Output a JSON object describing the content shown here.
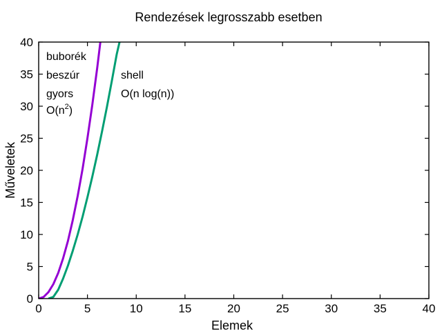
{
  "chart_data": {
    "type": "line",
    "title": "Rendezések legrosszabb esetben",
    "xlabel": "Elemek",
    "ylabel": "Műveletek",
    "xlim": [
      0,
      40
    ],
    "ylim": [
      0,
      40
    ],
    "xticks": [
      "0",
      "5",
      "10",
      "15",
      "20",
      "25",
      "30",
      "35",
      "40"
    ],
    "yticks": [
      "0",
      "5",
      "10",
      "15",
      "20",
      "25",
      "30",
      "35",
      "40"
    ],
    "grid": false,
    "legend": "none",
    "series": [
      {
        "color": "#9400d3",
        "x": [
          0,
          0.5,
          1,
          1.5,
          2,
          2.5,
          3,
          3.5,
          4,
          4.5,
          5,
          5.5,
          6,
          6.32
        ],
        "y": [
          0,
          0.25,
          1,
          2.25,
          4,
          6.25,
          9,
          12.25,
          16,
          20.25,
          25,
          30.25,
          36,
          40
        ]
      },
      {
        "color": "#009e73",
        "x": [
          1,
          1.5,
          2,
          2.5,
          3,
          3.5,
          4,
          4.5,
          5,
          5.5,
          6,
          6.5,
          7,
          7.5,
          8,
          8.5
        ],
        "y": [
          0,
          0.26,
          1.39,
          3.11,
          5.15,
          7.46,
          10.0,
          12.78,
          15.8,
          19.03,
          22.47,
          26.1,
          29.92,
          33.92,
          38.1,
          41.4
        ]
      }
    ],
    "annotations": {
      "quadratic_names": [
        "buborék",
        "beszúr",
        "gyors"
      ],
      "quadratic_o": "O(n",
      "quadratic_exp": "2",
      "quadratic_close": ")",
      "nlogn_name": "shell",
      "nlogn_o": "O(n log(n))"
    }
  }
}
